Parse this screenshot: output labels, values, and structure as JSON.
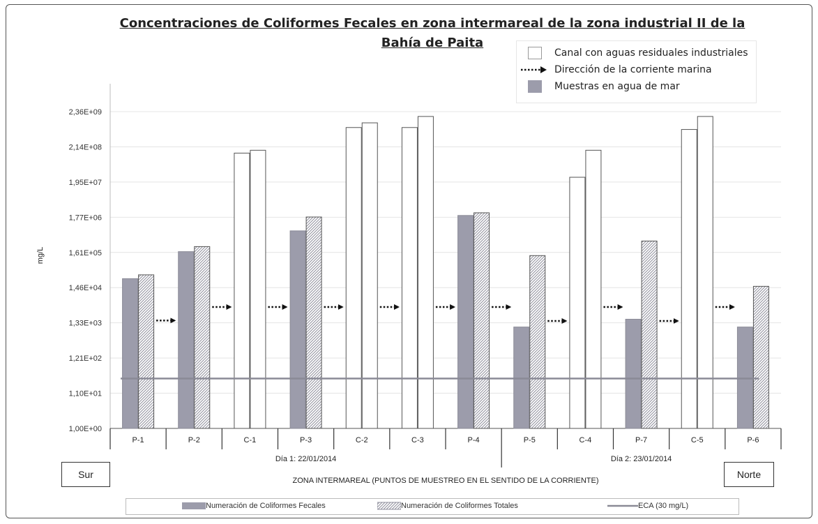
{
  "chart_data": {
    "type": "bar",
    "title": "Concentraciones de Coliformes Fecales en zona intermareal de la zona industrial II de la Bahía de Paita",
    "ylabel": "mg/L",
    "xlabel": "ZONA INTERMAREAL (PUNTOS DE MUESTREO EN EL SENTIDO DE LA CORRIENTE)",
    "y_scale": "log",
    "ylim": [
      1,
      2360000000
    ],
    "y_ticks": [
      "1,00E+00",
      "1,10E+01",
      "1,21E+02",
      "1,33E+03",
      "1,46E+04",
      "1,61E+05",
      "1,77E+06",
      "1,95E+07",
      "2,14E+08",
      "2,36E+09"
    ],
    "categories": [
      "P-1",
      "P-2",
      "C-1",
      "P-3",
      "C-2",
      "C-3",
      "P-4",
      "P-5",
      "C-4",
      "P-7",
      "C-5",
      "P-6"
    ],
    "category_kind": [
      "sea",
      "sea",
      "canal",
      "sea",
      "canal",
      "canal",
      "sea",
      "sea",
      "canal",
      "sea",
      "canal",
      "sea"
    ],
    "groups": [
      {
        "label": "Día 1: 22/01/2014",
        "from": 0,
        "to": 6
      },
      {
        "label": "Día 2: 23/01/2014",
        "from": 7,
        "to": 11
      }
    ],
    "series": [
      {
        "name": "Numeración de Coliformes Fecales",
        "values": [
          27000,
          170000,
          140000000,
          700000,
          800000000,
          800000000,
          2000000,
          1000,
          27000000,
          1700,
          700000000,
          1000
        ]
      },
      {
        "name": "Numeración de Coliformes Totales",
        "values": [
          35000,
          240000,
          170000000,
          1800000,
          1100000000,
          1700000000,
          2400000,
          130000,
          170000000,
          350000,
          1700000000,
          16000
        ]
      }
    ],
    "reference_line": {
      "name": "ECA (30 mg/L)",
      "value": 30
    },
    "current_arrows_after": [
      0,
      1,
      2,
      3,
      4,
      5,
      6,
      7,
      8,
      9,
      10
    ],
    "colors": {
      "fecal": "#9c9cab",
      "total_hatch": "#d0d0d8",
      "canal": "#ffffff",
      "eca": "#8a8a96"
    },
    "legend_top": {
      "canal": "Canal con aguas residuales industriales",
      "arrow": "Dirección de la corriente marina",
      "sea": "Muestras en agua de mar"
    },
    "side_left": "Sur",
    "side_right": "Norte"
  }
}
